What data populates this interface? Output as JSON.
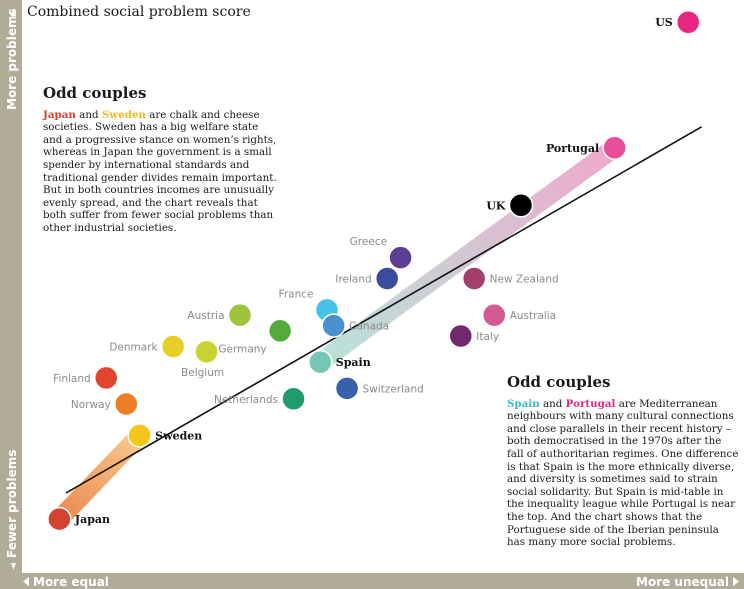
{
  "chart_data": {
    "type": "scatter",
    "title": "Combined social problem score",
    "x_axis": {
      "left_label": "More equal",
      "right_label": "More unequal"
    },
    "y_axis": {
      "top_label": "More problems",
      "bottom_label": "Fewer problems"
    },
    "xlim": [
      0,
      100
    ],
    "ylim": [
      0,
      100
    ],
    "trend_line": {
      "x": [
        3,
        98
      ],
      "y": [
        9,
        79
      ]
    },
    "points": [
      {
        "name": "Japan",
        "x": 2,
        "y": 4,
        "color": "#d64232",
        "highlight": true
      },
      {
        "name": "Sweden",
        "x": 14,
        "y": 20,
        "color": "#f4c51b",
        "highlight": true
      },
      {
        "name": "Norway",
        "x": 12,
        "y": 26,
        "color": "#ee7d26"
      },
      {
        "name": "Finland",
        "x": 9,
        "y": 31,
        "color": "#e2452e"
      },
      {
        "name": "Denmark",
        "x": 19,
        "y": 37,
        "color": "#e6ce26"
      },
      {
        "name": "Belgium",
        "x": 24,
        "y": 36,
        "color": "#c8d232"
      },
      {
        "name": "Austria",
        "x": 29,
        "y": 43,
        "color": "#9dc43b"
      },
      {
        "name": "Germany",
        "x": 35,
        "y": 40,
        "color": "#53ab3e"
      },
      {
        "name": "Netherlands",
        "x": 37,
        "y": 27,
        "color": "#1f9b6e"
      },
      {
        "name": "France",
        "x": 42,
        "y": 44,
        "color": "#46c3e8"
      },
      {
        "name": "Canada",
        "x": 43,
        "y": 41,
        "color": "#4a8fd0"
      },
      {
        "name": "Spain",
        "x": 41,
        "y": 34,
        "color": "#75c6b4",
        "highlight": true
      },
      {
        "name": "Switzerland",
        "x": 45,
        "y": 29,
        "color": "#3860ab"
      },
      {
        "name": "Ireland",
        "x": 51,
        "y": 50,
        "color": "#3c4c9c"
      },
      {
        "name": "Greece",
        "x": 53,
        "y": 54,
        "color": "#5c3f93"
      },
      {
        "name": "Italy",
        "x": 62,
        "y": 39,
        "color": "#6e2a6c"
      },
      {
        "name": "New Zealand",
        "x": 64,
        "y": 50,
        "color": "#a1406b"
      },
      {
        "name": "Australia",
        "x": 67,
        "y": 43,
        "color": "#d45992"
      },
      {
        "name": "UK",
        "x": 71,
        "y": 64,
        "color": "#000000",
        "highlight": true
      },
      {
        "name": "Portugal",
        "x": 85,
        "y": 75,
        "color": "#e84e9a",
        "highlight": true
      },
      {
        "name": "US",
        "x": 96,
        "y": 99,
        "color": "#e8287e"
      }
    ]
  },
  "colors": {
    "bar": "#b1ac98",
    "japan_sweden_band": "#efa369",
    "spain_portugal_band": "#e9a7c6"
  },
  "notes": {
    "left": {
      "heading": "Odd couples",
      "a": "Japan",
      "and": " and ",
      "b": "Sweden",
      "body": " are chalk and cheese societies. Sweden has a big welfare state and a progressive stance on women’s rights, whereas in Japan the government is a small spender by international standards and traditional gender divides remain important. But in both countries incomes are unusually evenly spread, and the chart reveals that both suffer from fewer social problems than other industrial societies."
    },
    "right": {
      "heading": "Odd couples",
      "a": "Spain",
      "and": " and ",
      "b": "Portugal",
      "body": " are Mediterranean neighbours with many cultural connections and close parallels in their recent history – both democratised in the 1970s after the fall of authoritarian regimes. One difference is that Spain is the more ethnically diverse, and diversity is sometimes said to strain social solidarity. But Spain is mid-table in the inequality league while Portugal is near the top. And the chart shows that the Portuguese side of the Iberian peninsula has many more social problems."
    }
  }
}
